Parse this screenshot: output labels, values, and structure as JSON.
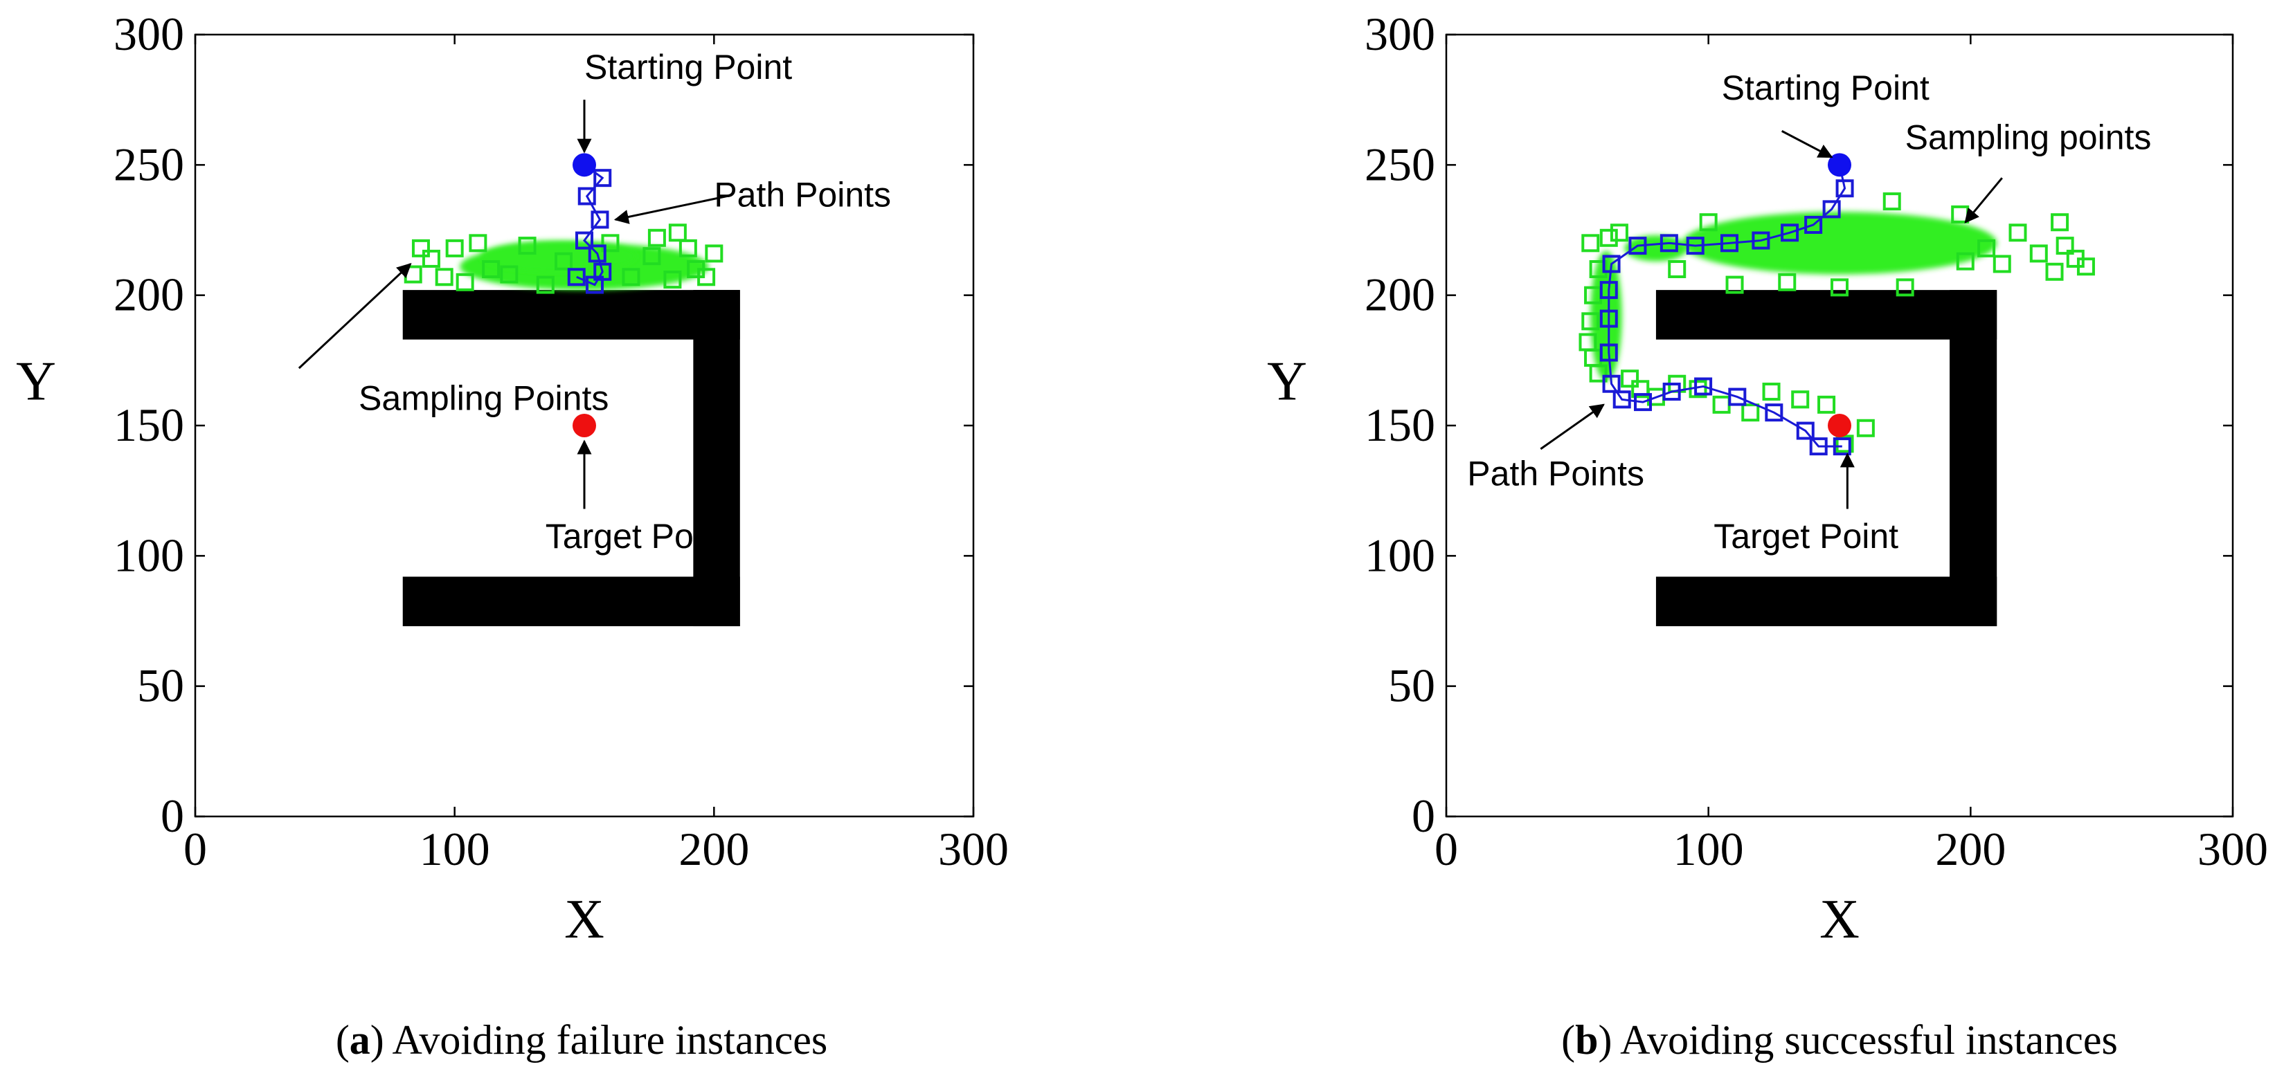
{
  "chart_data": [
    {
      "type": "scatter",
      "caption_letter": "a",
      "caption_text": "Avoiding failure instances",
      "xlabel": "X",
      "ylabel": "Y",
      "xlim": [
        0,
        300
      ],
      "ylim": [
        0,
        300
      ],
      "xticks": [
        "0",
        "100",
        "200",
        "300"
      ],
      "yticks": [
        "0",
        "50",
        "100",
        "150",
        "200",
        "250",
        "300"
      ],
      "obstacle": [
        {
          "x": 80,
          "y": 183,
          "w": 130,
          "h": 19
        },
        {
          "x": 192,
          "y": 73,
          "w": 18,
          "h": 129
        },
        {
          "x": 80,
          "y": 73,
          "w": 130,
          "h": 19
        }
      ],
      "start": {
        "x": 150,
        "y": 250
      },
      "target": {
        "x": 150,
        "y": 150
      },
      "sampling_region": [
        {
          "x": 150,
          "y": 211,
          "rx": 48,
          "ry": 9
        },
        {
          "x": 140,
          "y": 215,
          "rx": 30,
          "ry": 6
        }
      ],
      "sampling_points": [
        [
          84,
          208
        ],
        [
          87,
          218
        ],
        [
          91,
          214
        ],
        [
          96,
          207
        ],
        [
          100,
          218
        ],
        [
          104,
          205
        ],
        [
          109,
          220
        ],
        [
          114,
          210
        ],
        [
          121,
          208
        ],
        [
          128,
          219
        ],
        [
          135,
          204
        ],
        [
          142,
          213
        ],
        [
          160,
          220
        ],
        [
          168,
          207
        ],
        [
          176,
          215
        ],
        [
          184,
          206
        ],
        [
          186,
          224
        ],
        [
          190,
          218
        ],
        [
          193,
          210
        ],
        [
          197,
          207
        ],
        [
          200,
          216
        ],
        [
          178,
          222
        ]
      ],
      "path_points": [
        [
          150,
          250
        ],
        [
          157,
          245
        ],
        [
          151,
          238
        ],
        [
          156,
          229
        ],
        [
          150,
          221
        ],
        [
          155,
          216
        ],
        [
          157,
          209
        ],
        [
          154,
          204
        ],
        [
          147,
          207
        ]
      ],
      "annotations": [
        {
          "text": "Starting Point",
          "tx": 150,
          "ty": 283,
          "x1": 150,
          "y1": 275,
          "x2": 150,
          "y2": 255
        },
        {
          "text": "Path Points",
          "tx": 200,
          "ty": 234,
          "x1": 205,
          "y1": 238,
          "x2": 162,
          "y2": 229
        },
        {
          "text": "Sampling Points",
          "tx": 63,
          "ty": 156,
          "x1": 40,
          "y1": 172,
          "x2": 83,
          "y2": 212
        },
        {
          "text": "Target Point",
          "tx": 135,
          "ty": 103,
          "x1": 150,
          "y1": 118,
          "x2": 150,
          "y2": 144
        }
      ]
    },
    {
      "type": "scatter",
      "caption_letter": "b",
      "caption_text": "Avoiding successful instances",
      "xlabel": "X",
      "ylabel": "Y",
      "xlim": [
        0,
        300
      ],
      "ylim": [
        0,
        300
      ],
      "xticks": [
        "0",
        "100",
        "200",
        "300"
      ],
      "yticks": [
        "0",
        "50",
        "100",
        "150",
        "200",
        "250",
        "300"
      ],
      "obstacle": [
        {
          "x": 80,
          "y": 183,
          "w": 130,
          "h": 19
        },
        {
          "x": 192,
          "y": 73,
          "w": 18,
          "h": 129
        },
        {
          "x": 80,
          "y": 73,
          "w": 130,
          "h": 19
        }
      ],
      "start": {
        "x": 150,
        "y": 250
      },
      "target": {
        "x": 150,
        "y": 150
      },
      "sampling_region": [
        {
          "x": 150,
          "y": 220,
          "rx": 60,
          "ry": 12
        },
        {
          "x": 80,
          "y": 218,
          "rx": 12,
          "ry": 5
        },
        {
          "x": 61,
          "y": 192,
          "rx": 6,
          "ry": 25
        }
      ],
      "sampling_points": [
        [
          55,
          220
        ],
        [
          58,
          210
        ],
        [
          56,
          200
        ],
        [
          55,
          190
        ],
        [
          54,
          182
        ],
        [
          56,
          176
        ],
        [
          58,
          170
        ],
        [
          62,
          222
        ],
        [
          66,
          224
        ],
        [
          70,
          168
        ],
        [
          74,
          164
        ],
        [
          80,
          161
        ],
        [
          88,
          166
        ],
        [
          96,
          164
        ],
        [
          105,
          158
        ],
        [
          116,
          155
        ],
        [
          124,
          163
        ],
        [
          135,
          160
        ],
        [
          145,
          158
        ],
        [
          160,
          149
        ],
        [
          152,
          143
        ],
        [
          198,
          213
        ],
        [
          206,
          218
        ],
        [
          212,
          212
        ],
        [
          218,
          224
        ],
        [
          226,
          216
        ],
        [
          232,
          209
        ],
        [
          236,
          219
        ],
        [
          240,
          214
        ],
        [
          244,
          211
        ],
        [
          234,
          228
        ],
        [
          196,
          231
        ],
        [
          110,
          204
        ],
        [
          130,
          205
        ],
        [
          150,
          203
        ],
        [
          175,
          203
        ],
        [
          88,
          210
        ],
        [
          100,
          228
        ],
        [
          170,
          236
        ]
      ],
      "path_points": [
        [
          150,
          250
        ],
        [
          152,
          241
        ],
        [
          147,
          233
        ],
        [
          140,
          227
        ],
        [
          131,
          224
        ],
        [
          120,
          221
        ],
        [
          108,
          220
        ],
        [
          95,
          219
        ],
        [
          85,
          220
        ],
        [
          73,
          219
        ],
        [
          63,
          212
        ],
        [
          62,
          202
        ],
        [
          62,
          191
        ],
        [
          62,
          178
        ],
        [
          63,
          166
        ],
        [
          67,
          160
        ],
        [
          75,
          159
        ],
        [
          86,
          163
        ],
        [
          98,
          165
        ],
        [
          111,
          161
        ],
        [
          125,
          155
        ],
        [
          137,
          148
        ],
        [
          142,
          142
        ],
        [
          151,
          142
        ]
      ],
      "annotations": [
        {
          "text": "Starting Point",
          "tx": 105,
          "ty": 275,
          "x1": 128,
          "y1": 263,
          "x2": 147,
          "y2": 253
        },
        {
          "text": "Sampling points",
          "tx": 175,
          "ty": 256,
          "x1": 212,
          "y1": 245,
          "x2": 198,
          "y2": 228
        },
        {
          "text": "Path Points",
          "tx": 8,
          "ty": 127,
          "x1": 36,
          "y1": 141,
          "x2": 60,
          "y2": 158
        },
        {
          "text": "Target Point",
          "tx": 102,
          "ty": 103,
          "x1": 153,
          "y1": 118,
          "x2": 153,
          "y2": 139
        }
      ]
    }
  ]
}
